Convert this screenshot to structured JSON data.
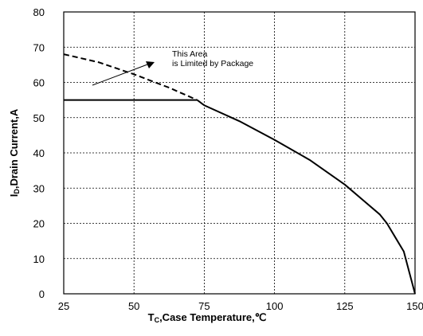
{
  "chart_data": {
    "type": "line",
    "xlabel_main": "T",
    "xlabel_sub": "C",
    "xlabel_rest": ",Case Temperature,℃",
    "ylabel_main": "I",
    "ylabel_sub": "D",
    "ylabel_rest": ",Drain Current,A",
    "xlim": [
      25,
      150
    ],
    "ylim": [
      0,
      80
    ],
    "x_ticks": [
      25,
      50,
      75,
      100,
      125,
      150
    ],
    "y_ticks": [
      0,
      10,
      20,
      30,
      40,
      50,
      60,
      70,
      80
    ],
    "grid": true,
    "annotation": {
      "line1": "This Area",
      "line2": "is Limited by Package"
    },
    "series": [
      {
        "style": "dashed",
        "color": "#000000",
        "x": [
          25,
          37.5,
          50,
          62.5,
          72.5
        ],
        "y": [
          68,
          65.7,
          62.3,
          58.5,
          55
        ]
      },
      {
        "style": "solid",
        "color": "#000000",
        "x": [
          25,
          72.5
        ],
        "y": [
          55,
          55
        ]
      },
      {
        "style": "solid",
        "color": "#000000",
        "x": [
          72.5,
          75,
          87.5,
          100,
          112.5,
          125,
          137.5,
          140,
          143,
          146,
          148,
          150
        ],
        "y": [
          55,
          53.5,
          49,
          43.7,
          38,
          31,
          22.5,
          20,
          16,
          12,
          6,
          0
        ]
      }
    ]
  }
}
